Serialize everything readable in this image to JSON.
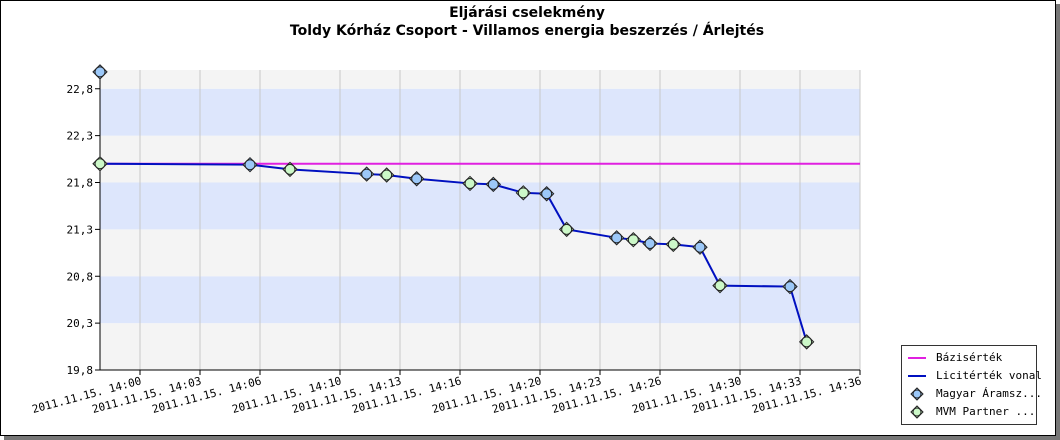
{
  "chart_data": {
    "type": "line",
    "title": "Eljárási cselekmény",
    "subtitle": "Toldy Kórház Csoport - Villamos energia beszerzés / Árlejtés",
    "ylim": [
      19.8,
      23.0
    ],
    "y_ticks": [
      "19,8",
      "20,3",
      "20,8",
      "21,3",
      "21,8",
      "22,3",
      "22,8"
    ],
    "x_range": [
      "2011.11.15. 13:58",
      "2011.11.15. 14:36"
    ],
    "x_tick_labels": [
      "2011.11.15. 14:00",
      "2011.11.15. 14:03",
      "2011.11.15. 14:06",
      "2011.11.15. 14:10",
      "2011.11.15. 14:13",
      "2011.11.15. 14:16",
      "2011.11.15. 14:20",
      "2011.11.15. 14:23",
      "2011.11.15. 14:26",
      "2011.11.15. 14:30",
      "2011.11.15. 14:33",
      "2011.11.15. 14:36"
    ],
    "series": [
      {
        "name": "Bázisérték",
        "kind": "line",
        "color": "#e020e0",
        "points": [
          [
            "2011.11.15. 13:58",
            22.0
          ],
          [
            "2011.11.15. 14:36",
            22.0
          ]
        ]
      },
      {
        "name": "Licitérték vonal",
        "kind": "line",
        "color": "#0010c0",
        "points": [
          [
            "2011.11.15. 13:58",
            22.0
          ],
          [
            "2011.11.15. 14:05:30",
            21.99
          ],
          [
            "2011.11.15. 14:07:30",
            21.94
          ],
          [
            "2011.11.15. 14:11:20",
            21.89
          ],
          [
            "2011.11.15. 14:12:20",
            21.88
          ],
          [
            "2011.11.15. 14:13:50",
            21.84
          ],
          [
            "2011.11.15. 14:16:30",
            21.79
          ],
          [
            "2011.11.15. 14:17:40",
            21.78
          ],
          [
            "2011.11.15. 14:19:10",
            21.69
          ],
          [
            "2011.11.15. 14:20:20",
            21.68
          ],
          [
            "2011.11.15. 14:21:20",
            21.3
          ],
          [
            "2011.11.15. 14:23:50",
            21.21
          ],
          [
            "2011.11.15. 14:24:40",
            21.19
          ],
          [
            "2011.11.15. 14:25:30",
            21.15
          ],
          [
            "2011.11.15. 14:26:40",
            21.14
          ],
          [
            "2011.11.15. 14:28:00",
            21.11
          ],
          [
            "2011.11.15. 14:29:00",
            20.7
          ],
          [
            "2011.11.15. 14:32:30",
            20.69
          ],
          [
            "2011.11.15. 14:33:20",
            20.1
          ]
        ]
      },
      {
        "name": "Magyar Áramsz...",
        "kind": "scatter",
        "color": "#9cc8f8",
        "points": [
          [
            "2011.11.15. 13:58",
            22.98
          ],
          [
            "2011.11.15. 14:05:30",
            21.99
          ],
          [
            "2011.11.15. 14:11:20",
            21.89
          ],
          [
            "2011.11.15. 14:13:50",
            21.84
          ],
          [
            "2011.11.15. 14:17:40",
            21.78
          ],
          [
            "2011.11.15. 14:20:20",
            21.68
          ],
          [
            "2011.11.15. 14:23:50",
            21.21
          ],
          [
            "2011.11.15. 14:25:30",
            21.15
          ],
          [
            "2011.11.15. 14:28:00",
            21.11
          ],
          [
            "2011.11.15. 14:32:30",
            20.69
          ]
        ]
      },
      {
        "name": "MVM Partner ...",
        "kind": "scatter",
        "color": "#ccf8c8",
        "points": [
          [
            "2011.11.15. 13:58",
            22.0
          ],
          [
            "2011.11.15. 14:07:30",
            21.94
          ],
          [
            "2011.11.15. 14:12:20",
            21.88
          ],
          [
            "2011.11.15. 14:16:30",
            21.79
          ],
          [
            "2011.11.15. 14:19:10",
            21.69
          ],
          [
            "2011.11.15. 14:21:20",
            21.3
          ],
          [
            "2011.11.15. 14:24:40",
            21.19
          ],
          [
            "2011.11.15. 14:26:40",
            21.14
          ],
          [
            "2011.11.15. 14:29:00",
            20.7
          ],
          [
            "2011.11.15. 14:33:20",
            20.1
          ]
        ]
      }
    ],
    "band_colors": [
      "#dde6fc",
      "#f4f4f4"
    ],
    "grid": true,
    "legend_position": "bottom-right"
  },
  "legend": [
    {
      "label": "Bázisérték",
      "kind": "line",
      "color": "#e020e0"
    },
    {
      "label": "Licitérték vonal",
      "kind": "line",
      "color": "#0010c0"
    },
    {
      "label": "Magyar Áramsz...",
      "kind": "marker",
      "color": "#9cc8f8"
    },
    {
      "label": "MVM Partner ...",
      "kind": "marker",
      "color": "#ccf8c8"
    }
  ]
}
